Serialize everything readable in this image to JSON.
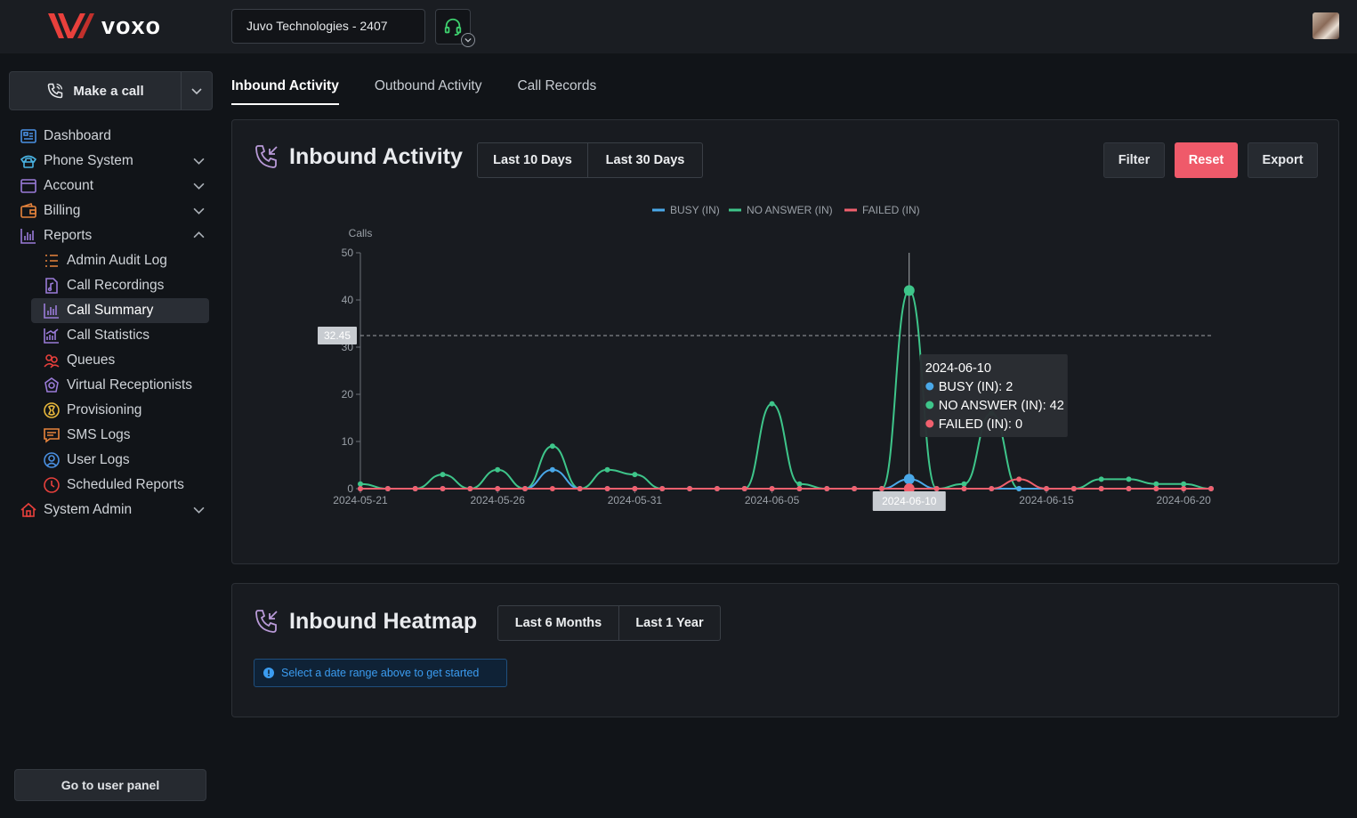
{
  "brand": {
    "name": "voxo",
    "logo_color": "#e8403c"
  },
  "header": {
    "company": "Juvo Technologies - 2407",
    "headset_color": "#3ecf6e"
  },
  "sidebar": {
    "make_call": "Make a call",
    "items": [
      {
        "label": "Dashboard",
        "icon": "dashboard-icon",
        "color": "#4a90e2",
        "chevron": ""
      },
      {
        "label": "Phone System",
        "icon": "phone-icon",
        "color": "#4ab3e2",
        "chevron": "down"
      },
      {
        "label": "Account",
        "icon": "window-icon",
        "color": "#9a7bd8",
        "chevron": "down"
      },
      {
        "label": "Billing",
        "icon": "wallet-icon",
        "color": "#e8843c",
        "chevron": "down"
      },
      {
        "label": "Reports",
        "icon": "bar-chart-icon",
        "color": "#9a7bd8",
        "chevron": "up"
      },
      {
        "label": "Admin Audit Log",
        "icon": "list-icon",
        "color": "#e8843c",
        "sub": true
      },
      {
        "label": "Call Recordings",
        "icon": "music-file-icon",
        "color": "#9a7bd8",
        "sub": true
      },
      {
        "label": "Call Summary",
        "icon": "bar-chart-icon",
        "color": "#9a7bd8",
        "sub": true,
        "active": true
      },
      {
        "label": "Call Statistics",
        "icon": "stats-icon",
        "color": "#9a7bd8",
        "sub": true
      },
      {
        "label": "Queues",
        "icon": "people-icon",
        "color": "#e8403c",
        "sub": true
      },
      {
        "label": "Virtual Receptionists",
        "icon": "bot-icon",
        "color": "#9a7bd8",
        "sub": true
      },
      {
        "label": "Provisioning",
        "icon": "gear-circle-icon",
        "color": "#e8b83c",
        "sub": true
      },
      {
        "label": "SMS Logs",
        "icon": "message-icon",
        "color": "#e8843c",
        "sub": true
      },
      {
        "label": "User Logs",
        "icon": "user-circle-icon",
        "color": "#4a90e2",
        "sub": true
      },
      {
        "label": "Scheduled Reports",
        "icon": "clock-icon",
        "color": "#e8403c",
        "sub": true
      },
      {
        "label": "System Admin",
        "icon": "home-icon",
        "color": "#e8403c",
        "chevron": "down"
      }
    ],
    "user_panel": "Go to user panel"
  },
  "tabs": [
    {
      "label": "Inbound Activity",
      "active": true
    },
    {
      "label": "Outbound Activity",
      "active": false
    },
    {
      "label": "Call Records",
      "active": false
    }
  ],
  "activity_card": {
    "title": "Inbound Activity",
    "ranges": [
      "Last 10 Days",
      "Last 30 Days"
    ],
    "buttons": {
      "filter": "Filter",
      "reset": "Reset",
      "export": "Export"
    }
  },
  "heatmap_card": {
    "title": "Inbound Heatmap",
    "ranges": [
      "Last 6 Months",
      "Last 1 Year"
    ],
    "alert": "Select a date range above to get started"
  },
  "chart_data": {
    "type": "line",
    "ylabel": "Calls",
    "ylim": [
      0,
      50
    ],
    "yticks": [
      0,
      10,
      20,
      30,
      40,
      50
    ],
    "x": [
      "2024-05-21",
      "2024-05-22",
      "2024-05-23",
      "2024-05-24",
      "2024-05-25",
      "2024-05-26",
      "2024-05-27",
      "2024-05-28",
      "2024-05-29",
      "2024-05-30",
      "2024-05-31",
      "2024-06-01",
      "2024-06-02",
      "2024-06-03",
      "2024-06-04",
      "2024-06-05",
      "2024-06-06",
      "2024-06-07",
      "2024-06-08",
      "2024-06-09",
      "2024-06-10",
      "2024-06-11",
      "2024-06-12",
      "2024-06-13",
      "2024-06-14",
      "2024-06-15",
      "2024-06-16",
      "2024-06-17",
      "2024-06-18",
      "2024-06-19",
      "2024-06-20",
      "2024-06-21"
    ],
    "xticks": [
      "2024-05-21",
      "2024-05-26",
      "2024-05-31",
      "2024-06-05",
      "2024-06-10",
      "2024-06-15",
      "2024-06-20"
    ],
    "legend_position": "top-center",
    "series": [
      {
        "name": "BUSY (IN)",
        "color": "#4aa8e8",
        "values": [
          0,
          0,
          0,
          0,
          0,
          0,
          0,
          4,
          0,
          0,
          0,
          0,
          0,
          0,
          0,
          0,
          0,
          0,
          0,
          0,
          2,
          0,
          0,
          0,
          0,
          0,
          0,
          0,
          0,
          0,
          0,
          0
        ]
      },
      {
        "name": "NO ANSWER (IN)",
        "color": "#3ec58a",
        "values": [
          1,
          0,
          0,
          3,
          0,
          4,
          0,
          9,
          0,
          4,
          3,
          0,
          0,
          0,
          0,
          18,
          1,
          0,
          0,
          0,
          42,
          0,
          1,
          16,
          0,
          0,
          0,
          2,
          2,
          1,
          1,
          0
        ]
      },
      {
        "name": "FAILED (IN)",
        "color": "#f0606e",
        "values": [
          0,
          0,
          0,
          0,
          0,
          0,
          0,
          0,
          0,
          0,
          0,
          0,
          0,
          0,
          0,
          0,
          0,
          0,
          0,
          0,
          0,
          0,
          0,
          0,
          2,
          0,
          0,
          0,
          0,
          0,
          0,
          0
        ]
      }
    ],
    "crosshair": {
      "x_label": "2024-06-10",
      "y_label": "32.45"
    },
    "tooltip": {
      "title": "2024-06-10",
      "lines": [
        "BUSY (IN): 2",
        "NO ANSWER (IN): 42",
        "FAILED (IN): 0"
      ]
    }
  }
}
